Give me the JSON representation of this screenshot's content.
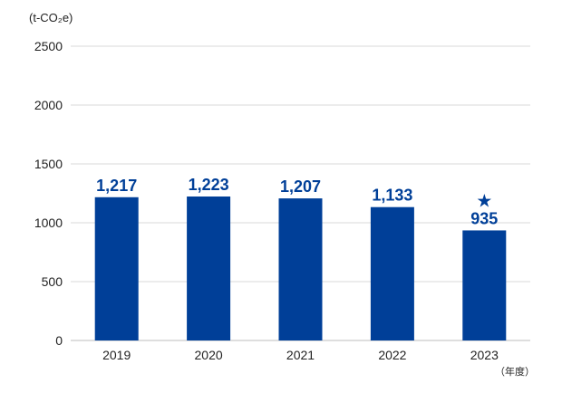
{
  "chart_data": {
    "type": "bar",
    "categories": [
      "2019",
      "2020",
      "2021",
      "2022",
      "2023"
    ],
    "values": [
      1217,
      1223,
      1207,
      1133,
      935
    ],
    "value_labels": [
      "1,217",
      "1,223",
      "1,207",
      "1,133",
      "935"
    ],
    "highlight": {
      "index": 4,
      "marker": "★"
    },
    "y_unit_label": "(t-CO₂e)",
    "x_unit_label": "（年度）",
    "ylim": [
      0,
      2500
    ],
    "yticks": [
      0,
      500,
      1000,
      1500,
      2000,
      2500
    ],
    "grid": true,
    "bar_color": "#003f98",
    "label_color": "#003f98",
    "grid_color": "#d9d9d9"
  }
}
